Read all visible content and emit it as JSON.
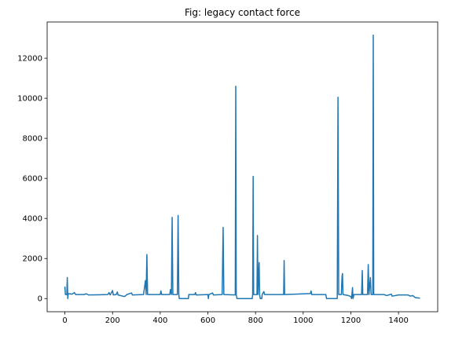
{
  "chart_data": {
    "type": "line",
    "title": "Fig: legacy contact force",
    "series": [
      {
        "name": "contact force",
        "color": "#1f77b4",
        "x": [
          0,
          2,
          8,
          10,
          12,
          14,
          30,
          40,
          45,
          80,
          90,
          100,
          180,
          185,
          190,
          200,
          203,
          215,
          220,
          223,
          250,
          260,
          280,
          283,
          330,
          338,
          341,
          344,
          347,
          400,
          403,
          406,
          440,
          443,
          447,
          450,
          453,
          472,
          475,
          478,
          480,
          518,
          520,
          545,
          548,
          551,
          600,
          602,
          604,
          620,
          623,
          660,
          664,
          667,
          715,
          717,
          719,
          722,
          786,
          788,
          790,
          792,
          806,
          808,
          810,
          815,
          817,
          820,
          826,
          828,
          835,
          838,
          918,
          920,
          922,
          1030,
          1033,
          1036,
          1095,
          1098,
          1143,
          1146,
          1149,
          1160,
          1163,
          1165,
          1167,
          1190,
          1200,
          1203,
          1207,
          1209,
          1213,
          1245,
          1248,
          1250,
          1270,
          1273,
          1276,
          1282,
          1285,
          1292,
          1294,
          1296,
          1340,
          1350,
          1370,
          1373,
          1400,
          1440,
          1450,
          1460,
          1470,
          1490
        ],
        "values": [
          600,
          200,
          200,
          1050,
          0,
          250,
          220,
          300,
          200,
          200,
          240,
          180,
          200,
          300,
          180,
          400,
          180,
          200,
          330,
          180,
          100,
          200,
          280,
          180,
          200,
          900,
          200,
          2200,
          200,
          200,
          380,
          200,
          200,
          450,
          200,
          4050,
          200,
          200,
          4150,
          200,
          0,
          0,
          200,
          200,
          300,
          180,
          200,
          0,
          200,
          280,
          180,
          200,
          3550,
          200,
          180,
          10600,
          200,
          0,
          0,
          200,
          6100,
          200,
          200,
          3150,
          200,
          1800,
          200,
          0,
          0,
          200,
          350,
          200,
          200,
          1900,
          200,
          250,
          380,
          200,
          200,
          0,
          0,
          10050,
          200,
          200,
          1100,
          1250,
          200,
          150,
          100,
          0,
          550,
          0,
          200,
          200,
          1400,
          200,
          200,
          1700,
          200,
          1050,
          200,
          200,
          13150,
          200,
          200,
          150,
          220,
          120,
          180,
          180,
          120,
          150,
          50,
          20
        ]
      }
    ],
    "xlim": [
      -74.5,
      1564.5
    ],
    "ylim": [
      -657,
      13807
    ],
    "xticks": [
      0,
      200,
      400,
      600,
      800,
      1000,
      1200,
      1400
    ],
    "yticks": [
      0,
      2000,
      4000,
      6000,
      8000,
      10000,
      12000
    ]
  }
}
